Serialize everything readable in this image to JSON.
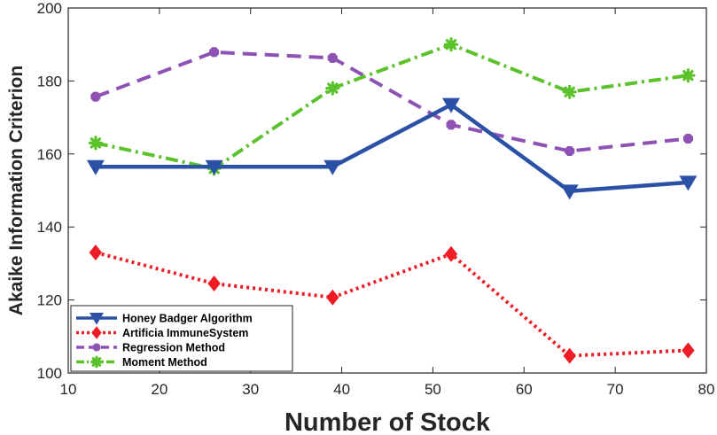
{
  "chart_data": {
    "type": "line",
    "title": "",
    "xlabel": "Number of Stock",
    "ylabel": "Akaike Information Criterion",
    "xlim": [
      10,
      80
    ],
    "ylim": [
      100,
      200
    ],
    "xticks": [
      10,
      20,
      30,
      40,
      50,
      60,
      70,
      80
    ],
    "yticks": [
      100,
      120,
      140,
      160,
      180,
      200
    ],
    "x": [
      13,
      26,
      39,
      52,
      65,
      78
    ],
    "legend_position": "bottom-left",
    "series": [
      {
        "name": "Honey Badger Algorithm",
        "values": [
          156.5,
          156.5,
          156.5,
          173.5,
          149.8,
          152.2
        ],
        "color": "#2a51a6",
        "style": "solid",
        "marker": "triangle-down"
      },
      {
        "name": "Artificia ImmuneSystem",
        "values": [
          133.0,
          124.5,
          120.7,
          132.6,
          104.7,
          106.2
        ],
        "color": "#ee1c24",
        "style": "dotted",
        "marker": "diamond"
      },
      {
        "name": "Regression Method",
        "values": [
          175.7,
          187.9,
          186.3,
          168.0,
          160.8,
          164.2
        ],
        "color": "#8e52b4",
        "style": "dashed",
        "marker": "octagon"
      },
      {
        "name": "Moment Method",
        "values": [
          163.0,
          156.0,
          178.0,
          190.0,
          177.0,
          181.5
        ],
        "color": "#5cc22b",
        "style": "dashdot",
        "marker": "asterisk"
      }
    ]
  }
}
